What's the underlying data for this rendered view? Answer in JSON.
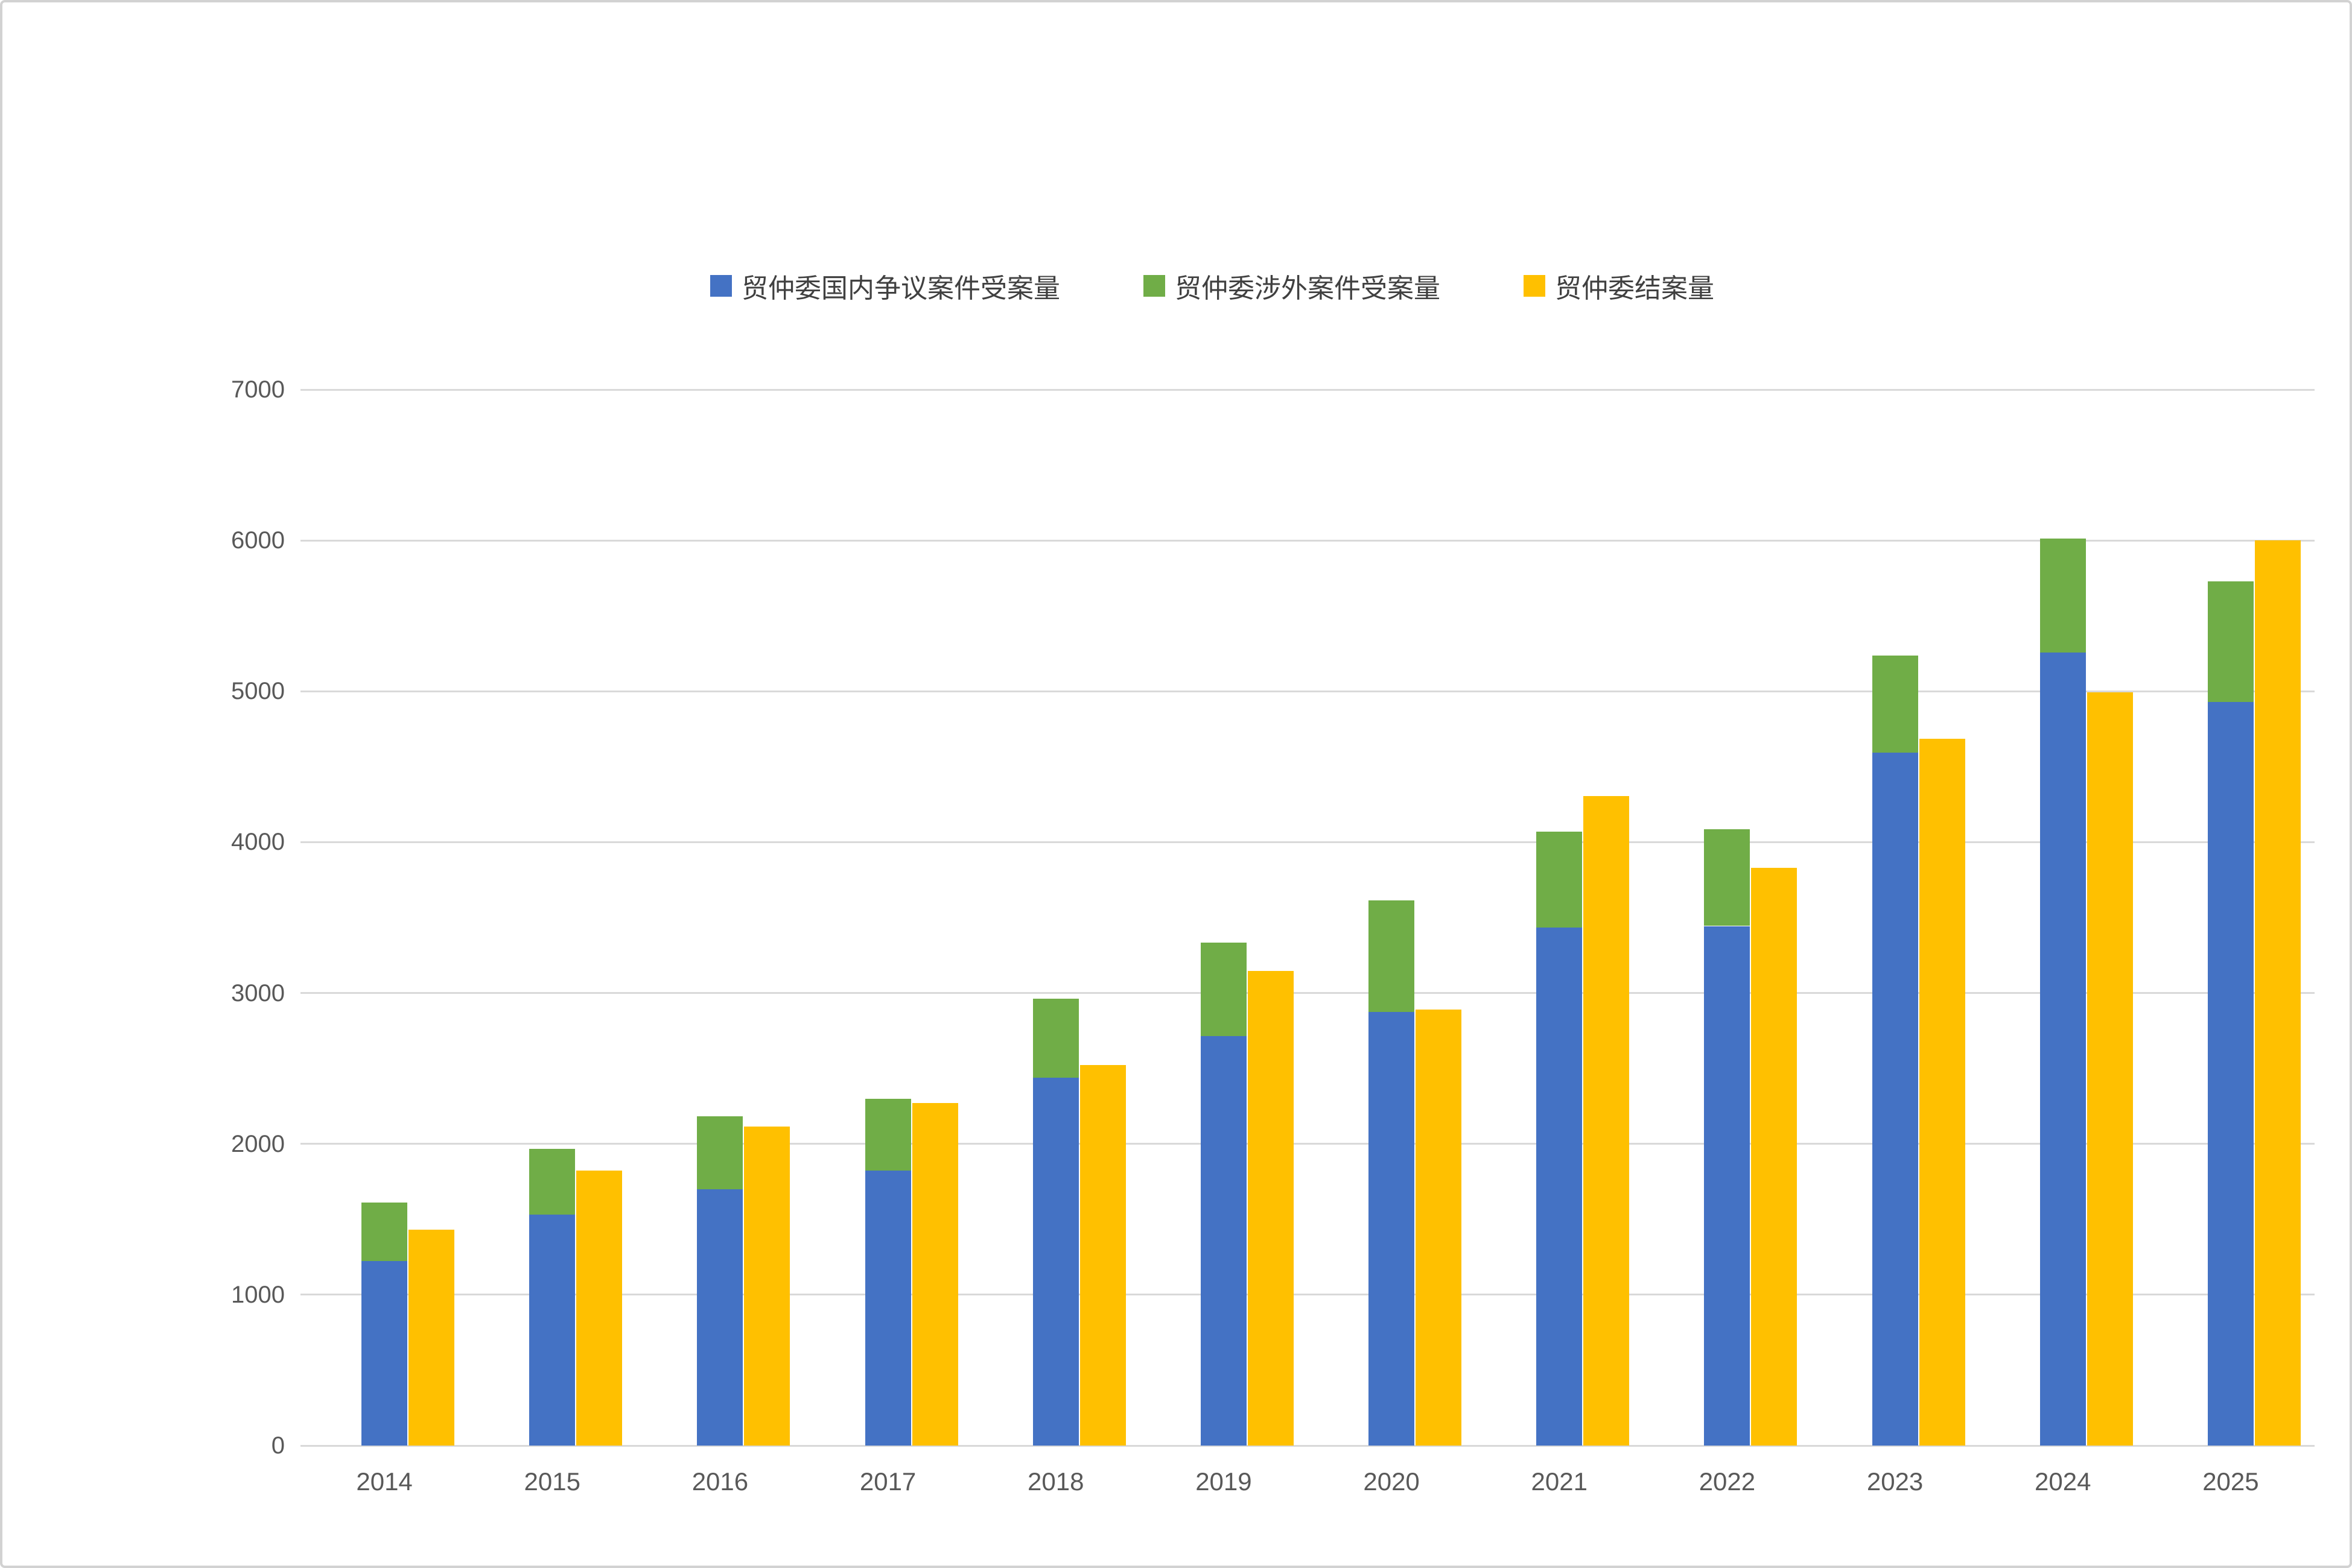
{
  "canvas": {
    "background": "#ffffff",
    "border_color": "#d2d2d2"
  },
  "legend": {
    "position": "top",
    "items": [
      {
        "label": "贸仲委国内争议案件受案量",
        "color": "#4472C4"
      },
      {
        "label": "贸仲委涉外案件受案量",
        "color": "#70AD47"
      },
      {
        "label": "贸仲委结案量",
        "color": "#FFC000"
      }
    ]
  },
  "chart_data": {
    "type": "bar",
    "subtype": "stacked-plus-adjacent-bar",
    "title": "",
    "xlabel": "",
    "ylabel": "",
    "categories": [
      "2014",
      "2015",
      "2016",
      "2017",
      "2018",
      "2019",
      "2020",
      "2021",
      "2022",
      "2023",
      "2024",
      "2025"
    ],
    "series": [
      {
        "name": "贸仲委国内争议案件受案量",
        "role": "stack-bottom",
        "color": "#4472C4",
        "values": [
          1223,
          1531,
          1698,
          1822,
          2440,
          2716,
          2876,
          3435,
          3444,
          4592,
          5255,
          4930
        ]
      },
      {
        "name": "贸仲委涉外案件受案量",
        "role": "stack-top",
        "color": "#70AD47",
        "values": [
          387,
          437,
          483,
          476,
          522,
          617,
          739,
          636,
          642,
          645,
          758,
          800
        ]
      },
      {
        "name": "贸仲委结案量",
        "role": "separate-bar",
        "color": "#FFC000",
        "values": [
          1432,
          1821,
          2113,
          2270,
          2524,
          3148,
          2890,
          4307,
          3829,
          4687,
          4994,
          6000
        ]
      }
    ],
    "stacked_totals": [
      1610,
      1968,
      2181,
      2298,
      2962,
      3333,
      3615,
      4071,
      4086,
      5237,
      6013,
      5730
    ],
    "y_axis": {
      "min": 0,
      "max": 7000,
      "tick_interval": 1000,
      "ticks": [
        "0",
        "1000",
        "2000",
        "3000",
        "4000",
        "5000",
        "6000",
        "7000"
      ]
    },
    "grid": true,
    "gridline_color": "#D9D9D9",
    "axis_label_color": "#595959",
    "legend_position": "top"
  }
}
